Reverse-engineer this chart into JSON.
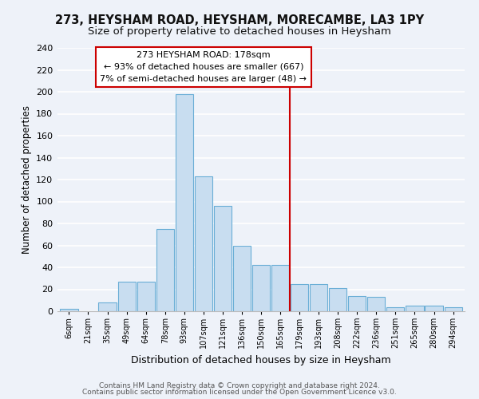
{
  "title": "273, HEYSHAM ROAD, HEYSHAM, MORECAMBE, LA3 1PY",
  "subtitle": "Size of property relative to detached houses in Heysham",
  "xlabel": "Distribution of detached houses by size in Heysham",
  "ylabel": "Number of detached properties",
  "bar_heights": [
    2,
    0,
    8,
    27,
    27,
    75,
    198,
    123,
    96,
    60,
    42,
    42,
    25,
    25,
    21,
    14,
    13,
    4,
    5,
    5,
    4
  ],
  "x_labels": [
    "6sqm",
    "21sqm",
    "35sqm",
    "49sqm",
    "64sqm",
    "78sqm",
    "93sqm",
    "107sqm",
    "121sqm",
    "136sqm",
    "150sqm",
    "165sqm",
    "179sqm",
    "193sqm",
    "208sqm",
    "222sqm",
    "236sqm",
    "251sqm",
    "265sqm",
    "280sqm",
    "294sqm"
  ],
  "bar_color": "#c8ddf0",
  "bar_edge_color": "#6aaed6",
  "vline_index": 12,
  "vline_color": "#cc0000",
  "ann_title": "273 HEYSHAM ROAD: 178sqm",
  "ann_line1": "← 93% of detached houses are smaller (667)",
  "ann_line2": "7% of semi-detached houses are larger (48) →",
  "ann_box_color": "#cc0000",
  "ylim": [
    0,
    240
  ],
  "yticks": [
    0,
    20,
    40,
    60,
    80,
    100,
    120,
    140,
    160,
    180,
    200,
    220,
    240
  ],
  "footnote_line1": "Contains HM Land Registry data © Crown copyright and database right 2024.",
  "footnote_line2": "Contains public sector information licensed under the Open Government Licence v3.0.",
  "bg_color": "#eef2f9",
  "grid_color": "#ffffff",
  "title_fontsize": 10.5,
  "subtitle_fontsize": 9.5,
  "ylabel_fontsize": 8.5,
  "xlabel_fontsize": 9
}
